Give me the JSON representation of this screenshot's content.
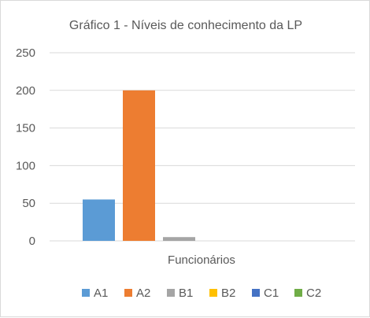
{
  "chart_data": {
    "type": "bar",
    "title": "Gráfico 1 - Níveis de conhecimento da LP",
    "categories": [
      "Funcionários"
    ],
    "series": [
      {
        "name": "A1",
        "values": [
          55
        ],
        "color": "#5b9bd5"
      },
      {
        "name": "A2",
        "values": [
          200
        ],
        "color": "#ed7d31"
      },
      {
        "name": "B1",
        "values": [
          5
        ],
        "color": "#a5a5a5"
      },
      {
        "name": "B2",
        "values": [
          0
        ],
        "color": "#ffc000"
      },
      {
        "name": "C1",
        "values": [
          0
        ],
        "color": "#4472c4"
      },
      {
        "name": "C2",
        "values": [
          0
        ],
        "color": "#70ad47"
      }
    ],
    "yticks": [
      "0",
      "50",
      "100",
      "150",
      "200",
      "250"
    ],
    "ylim": [
      0,
      250
    ],
    "grid": true,
    "legend": "bottom",
    "xlabel": "",
    "ylabel": ""
  }
}
